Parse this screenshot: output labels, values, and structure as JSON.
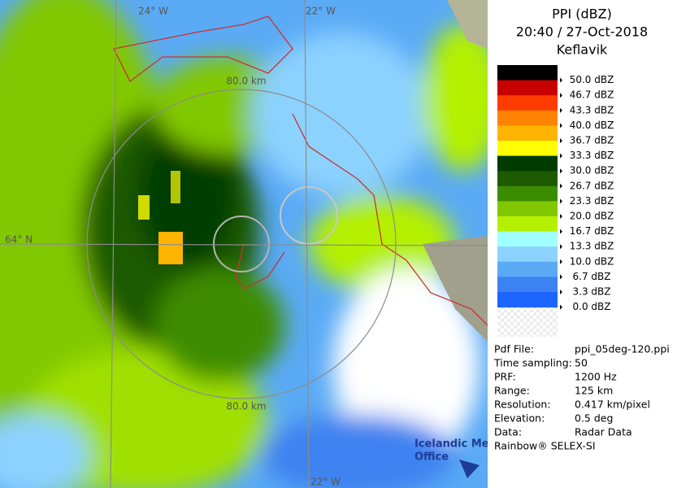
{
  "header": {
    "title": "PPI (dBZ)",
    "time": "20:40 / 27-Oct-2018",
    "site": "Keflavik"
  },
  "legend": {
    "items": [
      {
        "label": "50.0 dBZ",
        "color": "#000000"
      },
      {
        "label": "46.7 dBZ",
        "color": "#c80000"
      },
      {
        "label": "43.3 dBZ",
        "color": "#ff3c00"
      },
      {
        "label": "40.0 dBZ",
        "color": "#ff8200"
      },
      {
        "label": "36.7 dBZ",
        "color": "#ffb400"
      },
      {
        "label": "33.3 dBZ",
        "color": "#ffff00"
      },
      {
        "label": "30.0 dBZ",
        "color": "#003c00"
      },
      {
        "label": "26.7 dBZ",
        "color": "#1e5a00"
      },
      {
        "label": "23.3 dBZ",
        "color": "#3c8c00"
      },
      {
        "label": "20.0 dBZ",
        "color": "#82c800"
      },
      {
        "label": "16.7 dBZ",
        "color": "#b4f000"
      },
      {
        "label": "13.3 dBZ",
        "color": "#a0ffff"
      },
      {
        "label": "10.0 dBZ",
        "color": "#8cd2ff"
      },
      {
        "label": "6.7 dBZ",
        "color": "#5aaaf5"
      },
      {
        "label": "3.3 dBZ",
        "color": "#3c82f0"
      },
      {
        "label": "0.0 dBZ",
        "color": "#1e64ff"
      }
    ]
  },
  "info": {
    "rows": [
      [
        "Pdf File:",
        "ppi_05deg-120.ppi"
      ],
      [
        "Time sampling:",
        "50"
      ],
      [
        "PRF:",
        "1200 Hz"
      ],
      [
        "Range:",
        "125 km"
      ],
      [
        "Resolution:",
        "0.417 km/pixel"
      ],
      [
        "Elevation:",
        "0.5 deg"
      ],
      [
        "Data:",
        "Radar Data"
      ]
    ],
    "footer": "Rainbow® SELEX-SI"
  },
  "map": {
    "lon_top_left": "24° W",
    "lon_top_right": "22° W",
    "lon_bottom": "22° W",
    "lat": "64° N",
    "range_top": "80.0 km",
    "range_bottom": "80.0 km",
    "credit_line1": "Icelandic Met",
    "credit_line2": "Office"
  }
}
